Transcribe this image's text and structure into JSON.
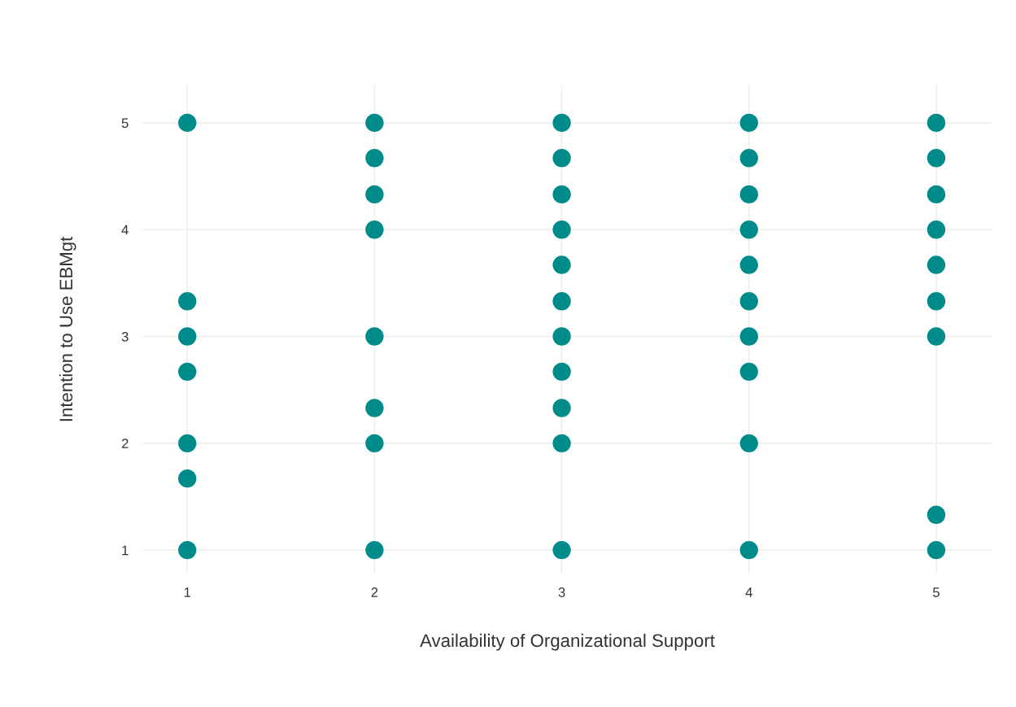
{
  "chart_data": {
    "type": "scatter",
    "xlabel": "Availability of Organizational Support",
    "ylabel": "Intention to Use EBMgt",
    "x": [
      1,
      1,
      1,
      1,
      1,
      1,
      1,
      2,
      2,
      2,
      2,
      2,
      2,
      2,
      2,
      3,
      3,
      3,
      3,
      3,
      3,
      3,
      3,
      3,
      3,
      3,
      4,
      4,
      4,
      4,
      4,
      4,
      4,
      4,
      4,
      4,
      5,
      5,
      5,
      5,
      5,
      5,
      5,
      5,
      5
    ],
    "values": [
      5,
      3.33,
      3,
      2.67,
      2,
      1.67,
      1,
      5,
      4.67,
      4.33,
      4,
      3,
      2.33,
      2,
      1,
      5,
      4.67,
      4.33,
      4,
      3.67,
      3.33,
      3,
      2.67,
      2.33,
      2,
      1,
      5,
      4.67,
      4.33,
      4,
      3.67,
      3.33,
      3,
      2.67,
      2,
      1,
      5,
      4.67,
      4.33,
      4,
      3.67,
      3.33,
      3,
      1.33,
      1
    ],
    "color": "#008b8b",
    "marker": "circle",
    "xlim": [
      0.76,
      5.3
    ],
    "ylim": [
      0.78,
      5.35
    ],
    "xticks": [
      1,
      2,
      3,
      4,
      5
    ],
    "yticks": [
      1,
      2,
      3,
      4,
      5
    ],
    "grid": true
  }
}
